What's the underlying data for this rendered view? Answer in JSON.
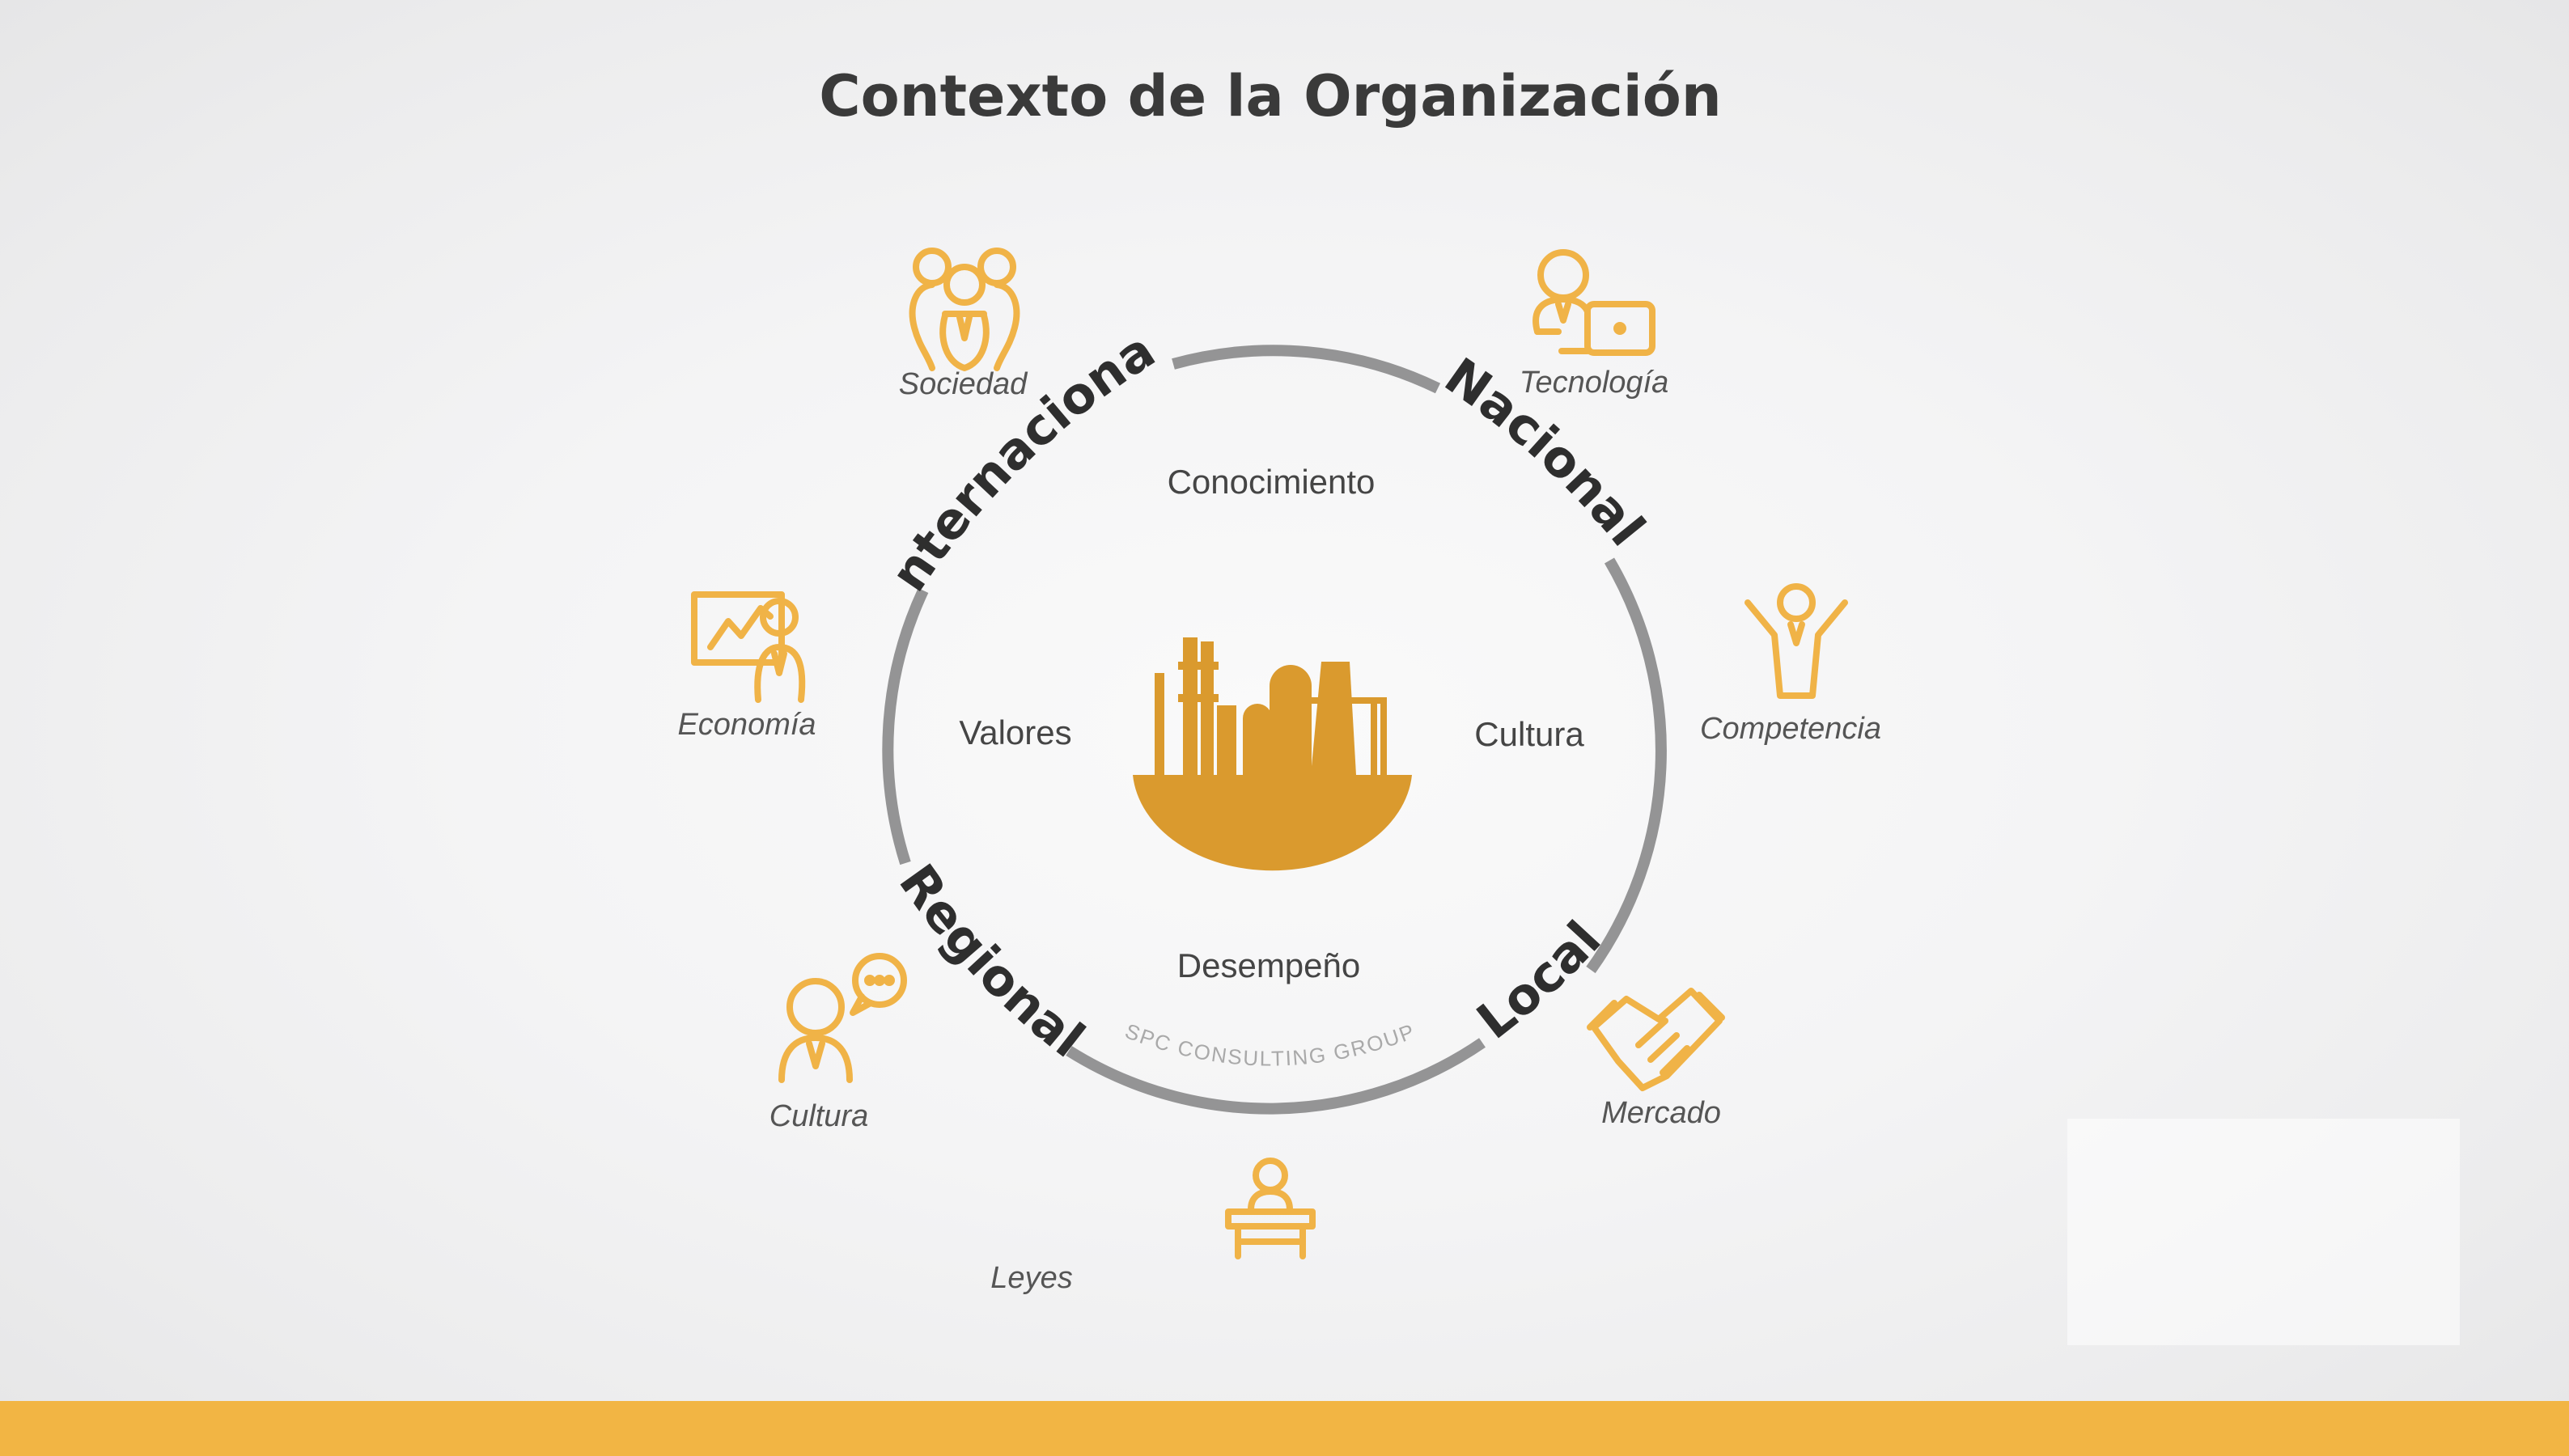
{
  "title": "Contexto de la Organización",
  "colors": {
    "accent": "#F2B544",
    "icon": "#F0B347",
    "factory": "#DA9A2E",
    "ring": "#949495",
    "title": "#3A3A3A",
    "scope_label": "#2E2E2E",
    "inner_text": "#454545",
    "factor_text": "#555555",
    "watermark": "#A9A9A9"
  },
  "scopes": {
    "international": "Internacional",
    "national": "Nacional",
    "local": "Local",
    "regional": "Regional"
  },
  "inner": {
    "top": "Conocimiento",
    "left": "Valores",
    "right": "Cultura",
    "bottom": "Desempeño",
    "center_icon": "factory-icon"
  },
  "watermark": "SPC CONSULTING GROUP",
  "factors": [
    {
      "label": "Sociedad",
      "icon": "people-group-icon"
    },
    {
      "label": "Tecnología",
      "icon": "person-laptop-icon"
    },
    {
      "label": "Competencia",
      "icon": "winner-person-icon"
    },
    {
      "label": "Mercado",
      "icon": "handshake-icon"
    },
    {
      "label": "Leyes",
      "icon": "person-podium-icon"
    },
    {
      "label": "Cultura",
      "icon": "person-speech-bubble-icon"
    },
    {
      "label": "Economía",
      "icon": "person-presentation-icon"
    }
  ]
}
